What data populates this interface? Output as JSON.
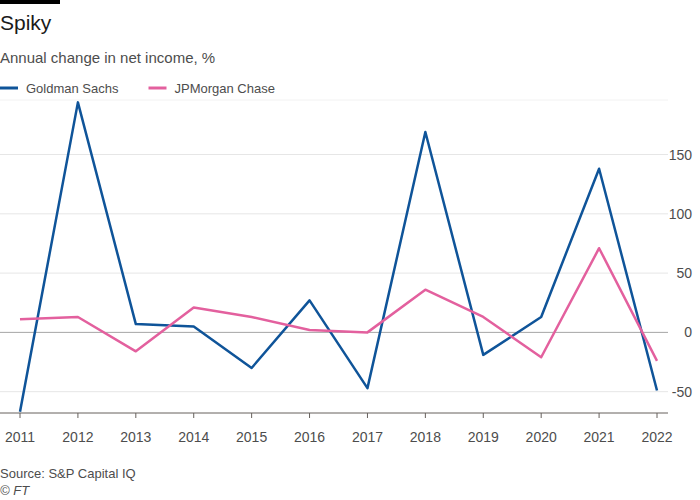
{
  "chart_data": {
    "type": "line",
    "title": "Spiky",
    "subtitle": "Annual change in net income, %",
    "source": "Source: S&P Capital IQ",
    "credit": "© FT",
    "x": [
      2011,
      2012,
      2013,
      2014,
      2015,
      2016,
      2017,
      2018,
      2019,
      2020,
      2021,
      2022
    ],
    "xlim": [
      2011,
      2022
    ],
    "xticks": [
      2011,
      2012,
      2013,
      2014,
      2015,
      2016,
      2017,
      2018,
      2019,
      2020,
      2021,
      2022
    ],
    "ylim": [
      -68,
      196
    ],
    "yticks": [
      -50,
      0,
      50,
      100,
      150
    ],
    "grid": true,
    "legend": "top-left",
    "series": [
      {
        "name": "Goldman Sachs",
        "color": "#0f5499",
        "values": [
          -67,
          194,
          7,
          5,
          -30,
          27,
          -47,
          169,
          -19,
          13,
          138,
          -49
        ]
      },
      {
        "name": "JPMorgan Chase",
        "color": "#e3609e",
        "values": [
          11,
          13,
          -16,
          21,
          13,
          2,
          0,
          36,
          13,
          -21,
          71,
          -24
        ]
      }
    ]
  }
}
